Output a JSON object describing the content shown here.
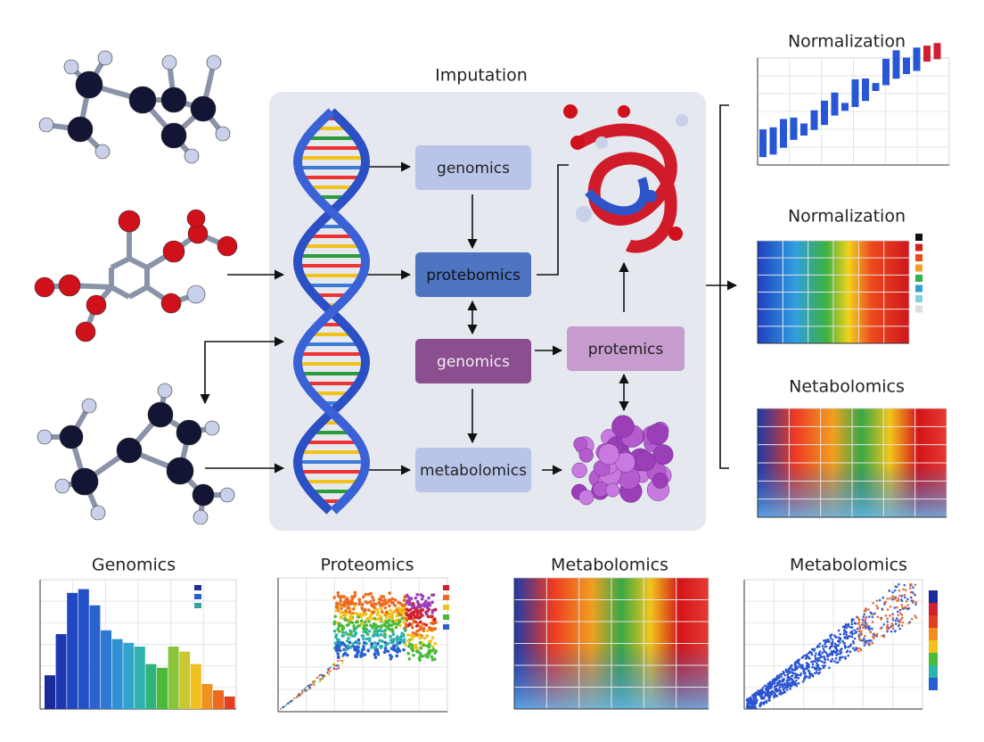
{
  "title": "Imputation",
  "nodes": [
    {
      "label": "genomics"
    },
    {
      "label": "protebomics"
    },
    {
      "label": "genomics"
    },
    {
      "label": "protemics"
    },
    {
      "label": "metabolomics"
    }
  ],
  "panels": [
    {
      "title": "Normalization"
    },
    {
      "title": "Normalization"
    },
    {
      "title": "Netabolomics"
    },
    {
      "title": "Genomics"
    },
    {
      "title": "Proteomics"
    },
    {
      "title": "Metabolomics"
    },
    {
      "title": "Metabolomics"
    }
  ]
}
